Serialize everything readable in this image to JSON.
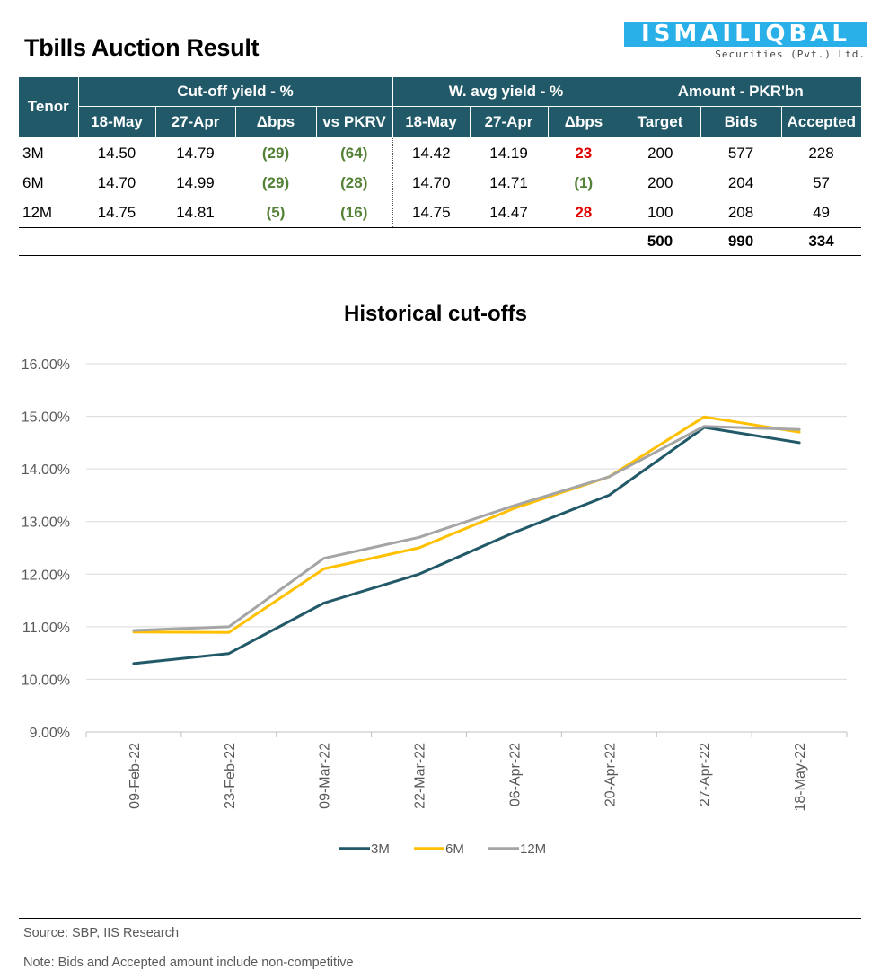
{
  "title": "Tbills Auction Result",
  "logo": {
    "main": "ISMAILIQBAL",
    "sub": "Securities (Pvt.) Ltd."
  },
  "table": {
    "tenor_header": "Tenor",
    "groups": [
      "Cut-off yield - %",
      "W. avg yield - %",
      "Amount - PKR'bn"
    ],
    "subheaders": [
      "18-May",
      "27-Apr",
      "Δbps",
      "vs PKRV",
      "18-May",
      "27-Apr",
      "Δbps",
      "Target",
      "Bids",
      "Accepted"
    ],
    "rows": [
      {
        "tenor": "3M",
        "c_may": "14.50",
        "c_apr": "14.79",
        "c_dbps": "(29)",
        "c_pkrv": "(64)",
        "w_may": "14.42",
        "w_apr": "14.19",
        "w_dbps": "23",
        "target": "200",
        "bids": "577",
        "accepted": "228"
      },
      {
        "tenor": "6M",
        "c_may": "14.70",
        "c_apr": "14.99",
        "c_dbps": "(29)",
        "c_pkrv": "(28)",
        "w_may": "14.70",
        "w_apr": "14.71",
        "w_dbps": "(1)",
        "target": "200",
        "bids": "204",
        "accepted": "57"
      },
      {
        "tenor": "12M",
        "c_may": "14.75",
        "c_apr": "14.81",
        "c_dbps": "(5)",
        "c_pkrv": "(16)",
        "w_may": "14.75",
        "w_apr": "14.47",
        "w_dbps": "28",
        "target": "100",
        "bids": "208",
        "accepted": "49"
      }
    ],
    "totals": {
      "target": "500",
      "bids": "990",
      "accepted": "334"
    },
    "colors": {
      "header_bg": "#215968",
      "positive": "#538135",
      "negative": "#e00000"
    }
  },
  "chart_data": {
    "type": "line",
    "title": "Historical cut-offs",
    "categories": [
      "09-Feb-22",
      "23-Feb-22",
      "09-Mar-22",
      "22-Mar-22",
      "06-Apr-22",
      "20-Apr-22",
      "27-Apr-22",
      "18-May-22"
    ],
    "series": [
      {
        "name": "3M",
        "color": "#215968",
        "values": [
          10.3,
          10.49,
          11.45,
          12.0,
          12.79,
          13.5,
          14.79,
          14.5
        ]
      },
      {
        "name": "6M",
        "color": "#ffc000",
        "values": [
          10.9,
          10.89,
          12.1,
          12.5,
          13.25,
          13.85,
          14.99,
          14.7
        ]
      },
      {
        "name": "12M",
        "color": "#a5a5a5",
        "values": [
          10.93,
          11.0,
          12.3,
          12.7,
          13.3,
          13.85,
          14.81,
          14.75
        ]
      }
    ],
    "ylim": [
      9,
      16
    ],
    "yticks": [
      "9.00%",
      "10.00%",
      "11.00%",
      "12.00%",
      "13.00%",
      "14.00%",
      "15.00%",
      "16.00%"
    ],
    "grid": true,
    "legend_position": "bottom"
  },
  "footer": {
    "source": "Source: SBP, IIS Research",
    "note": "Note: Bids and Accepted amount include non-competitive"
  }
}
